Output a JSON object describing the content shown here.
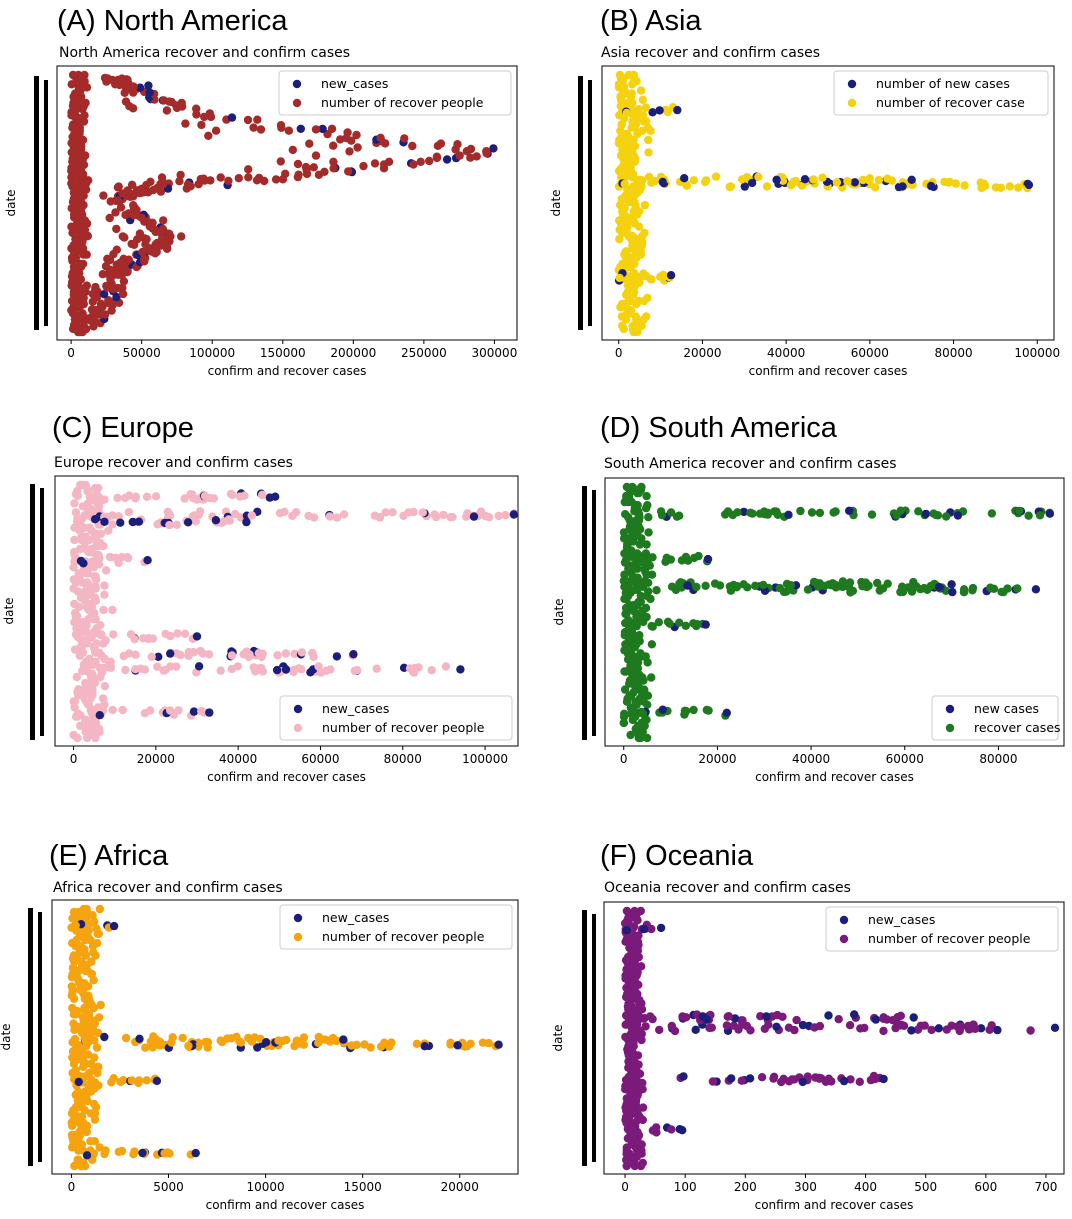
{
  "chart_data": [
    {
      "heading": "(A) North America",
      "type": "scatter",
      "title": "North America recover and confirm cases",
      "xlabel": "confirm and recover cases",
      "ylabel": "date",
      "xticks": [
        0,
        50000,
        100000,
        150000,
        200000,
        250000,
        300000
      ],
      "xlim": [
        -10000,
        316000
      ],
      "ylim": [
        0,
        1
      ],
      "legend_position": "top-right",
      "series": [
        {
          "name": "new_cases",
          "color": "#1b1f7a"
        },
        {
          "name": "number of recover people",
          "color": "#a52a2a"
        }
      ],
      "trend": [
        {
          "x": 5000,
          "y": 0.01
        },
        {
          "x": 20000,
          "y": 0.06
        },
        {
          "x": 30000,
          "y": 0.14
        },
        {
          "x": 32000,
          "y": 0.22
        },
        {
          "x": 45000,
          "y": 0.27
        },
        {
          "x": 60000,
          "y": 0.32
        },
        {
          "x": 72000,
          "y": 0.36
        },
        {
          "x": 60000,
          "y": 0.42
        },
        {
          "x": 40000,
          "y": 0.46
        },
        {
          "x": 38000,
          "y": 0.52
        },
        {
          "x": 50000,
          "y": 0.55
        },
        {
          "x": 100000,
          "y": 0.58
        },
        {
          "x": 160000,
          "y": 0.61
        },
        {
          "x": 230000,
          "y": 0.65
        },
        {
          "x": 300000,
          "y": 0.7
        },
        {
          "x": 220000,
          "y": 0.75
        },
        {
          "x": 140000,
          "y": 0.8
        },
        {
          "x": 70000,
          "y": 0.88
        },
        {
          "x": 50000,
          "y": 0.95
        },
        {
          "x": 30000,
          "y": 0.98
        }
      ],
      "base_x_max": 12000
    },
    {
      "heading": "(B) Asia",
      "type": "scatter",
      "title": "Asia recover and confirm cases",
      "xlabel": "confirm and recover cases",
      "ylabel": "date",
      "xticks": [
        0,
        20000,
        40000,
        60000,
        80000,
        100000
      ],
      "xlim": [
        -4000,
        104000
      ],
      "ylim": [
        0,
        1
      ],
      "legend_position": "top-right",
      "series": [
        {
          "name": "number of new cases",
          "color": "#1b1f7a"
        },
        {
          "name": "number of recover case",
          "color": "#f5d20f"
        }
      ],
      "spikes": [
        {
          "y": 0.57,
          "x_max": 98000
        },
        {
          "y": 0.59,
          "x_max": 70000
        },
        {
          "y": 0.21,
          "x_max": 12000
        },
        {
          "y": 0.86,
          "x_max": 14000
        },
        {
          "y": 0.22,
          "x_max": 12500
        }
      ],
      "base_x_max": 7000
    },
    {
      "heading": "(C) Europe",
      "type": "scatter",
      "title": "Europe recover and confirm cases",
      "xlabel": "confirm and recover cases",
      "ylabel": "date",
      "xticks": [
        0,
        20000,
        40000,
        60000,
        80000,
        100000
      ],
      "xlim": [
        -4500,
        108000
      ],
      "ylim": [
        0,
        1
      ],
      "legend_position": "bottom-right",
      "series": [
        {
          "name": "new_cases",
          "color": "#1b1f7a"
        },
        {
          "name": "number of recover people",
          "color": "#f4b6c2"
        }
      ],
      "spikes": [
        {
          "y": 0.95,
          "x_max": 49000
        },
        {
          "y": 0.88,
          "x_max": 107000
        },
        {
          "y": 0.85,
          "x_max": 42000
        },
        {
          "y": 0.7,
          "x_max": 18000
        },
        {
          "y": 0.4,
          "x_max": 30000
        },
        {
          "y": 0.33,
          "x_max": 68000
        },
        {
          "y": 0.27,
          "x_max": 94000
        },
        {
          "y": 0.1,
          "x_max": 33000
        }
      ],
      "base_x_max": 9000
    },
    {
      "heading": "(D) South America",
      "type": "scatter",
      "title": "South America recover and confirm cases",
      "xlabel": "confirm and recover cases",
      "ylabel": "date",
      "xticks": [
        0,
        20000,
        40000,
        60000,
        80000
      ],
      "xlim": [
        -4000,
        94000
      ],
      "ylim": [
        0,
        1
      ],
      "legend_position": "bottom-right",
      "series": [
        {
          "name": "new cases",
          "color": "#1b1f7a"
        },
        {
          "name": "recover cases",
          "color": "#1f7a1f"
        }
      ],
      "spikes": [
        {
          "y": 0.89,
          "x_max": 91000
        },
        {
          "y": 0.59,
          "x_max": 88000
        },
        {
          "y": 0.61,
          "x_max": 70000
        },
        {
          "y": 0.45,
          "x_max": 17500
        },
        {
          "y": 0.1,
          "x_max": 22000
        },
        {
          "y": 0.71,
          "x_max": 18000
        }
      ],
      "base_x_max": 6000
    },
    {
      "heading": "(E) Africa",
      "type": "scatter",
      "title": "Africa recover and confirm cases",
      "xlabel": "confirm and recover cases",
      "ylabel": "date",
      "xticks": [
        0,
        5000,
        10000,
        15000,
        20000
      ],
      "xlim": [
        -1000,
        23000
      ],
      "ylim": [
        0,
        1
      ],
      "legend_position": "top-right",
      "series": [
        {
          "name": "new_cases",
          "color": "#1b1f7a"
        },
        {
          "name": "number of recover people",
          "color": "#f5a30f"
        }
      ],
      "spikes": [
        {
          "y": 0.47,
          "x_max": 22000
        },
        {
          "y": 0.49,
          "x_max": 14000
        },
        {
          "y": 0.33,
          "x_max": 4400
        },
        {
          "y": 0.05,
          "x_max": 6400
        },
        {
          "y": 0.93,
          "x_max": 2200
        }
      ],
      "base_x_max": 1500
    },
    {
      "heading": "(F) Oceania",
      "type": "scatter",
      "title": "Oceania recover and confirm cases",
      "xlabel": "confirm and recover cases",
      "ylabel": "date",
      "xticks": [
        0,
        100,
        200,
        300,
        400,
        500,
        600,
        700
      ],
      "xlim": [
        -35,
        730
      ],
      "ylim": [
        0,
        1
      ],
      "legend_position": "top-right",
      "series": [
        {
          "name": "new_cases",
          "color": "#1b1f7a"
        },
        {
          "name": "number of recover people",
          "color": "#7a1a7a"
        }
      ],
      "spikes": [
        {
          "y": 0.54,
          "x_max": 715
        },
        {
          "y": 0.58,
          "x_max": 480
        },
        {
          "y": 0.34,
          "x_max": 430
        },
        {
          "y": 0.14,
          "x_max": 95
        },
        {
          "y": 0.93,
          "x_max": 60
        }
      ],
      "base_x_max": 30
    }
  ]
}
